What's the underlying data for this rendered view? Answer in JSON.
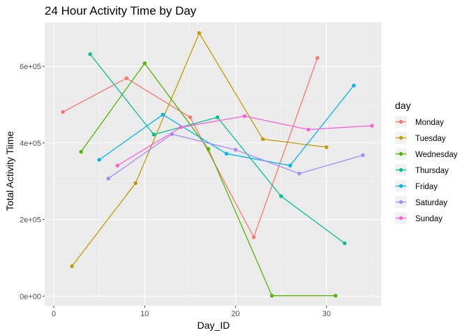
{
  "chart_data": {
    "type": "line",
    "title": "24 Hour Activity Time by Day",
    "xlabel": "Day_ID",
    "ylabel": "Total Activity Tiime",
    "xlim": [
      -1,
      36
    ],
    "ylim": [
      -25000,
      715000
    ],
    "x_ticks": [
      0,
      10,
      20,
      30
    ],
    "x_tick_labels": [
      "0",
      "10",
      "20",
      "30"
    ],
    "y_ticks": [
      0,
      200000,
      400000,
      600000
    ],
    "y_tick_labels": [
      "0e+00",
      "2e+05",
      "4e+05",
      "6e+05"
    ],
    "grid": true,
    "background": "#ebebeb",
    "legend": {
      "title": "day",
      "position": "right"
    },
    "series": [
      {
        "name": "Monday",
        "color": "#F8766D",
        "x": [
          1,
          8,
          15,
          22,
          29
        ],
        "y": [
          481000,
          569000,
          467000,
          154000,
          622000
        ]
      },
      {
        "name": "Tuesday",
        "color": "#C49A00",
        "x": [
          2,
          9,
          16,
          23,
          30
        ],
        "y": [
          78000,
          295000,
          687000,
          410000,
          389000
        ]
      },
      {
        "name": "Wednesday",
        "color": "#53B400",
        "x": [
          3,
          10,
          17,
          24,
          31
        ],
        "y": [
          377000,
          608000,
          384000,
          1000,
          1000
        ]
      },
      {
        "name": "Thursday",
        "color": "#00C094",
        "x": [
          4,
          11,
          18,
          25,
          32
        ],
        "y": [
          632000,
          422000,
          467000,
          261000,
          138000
        ]
      },
      {
        "name": "Friday",
        "color": "#00B6EB",
        "x": [
          5,
          12,
          19,
          26,
          33
        ],
        "y": [
          356000,
          474000,
          372000,
          341000,
          550000
        ]
      },
      {
        "name": "Saturday",
        "color": "#A58AFF",
        "x": [
          6,
          13,
          20,
          27,
          34
        ],
        "y": [
          307000,
          423000,
          382000,
          320000,
          368000
        ]
      },
      {
        "name": "Sunday",
        "color": "#FB61D7",
        "x": [
          7,
          14,
          21,
          28,
          35
        ],
        "y": [
          341000,
          441000,
          470000,
          435000,
          445000
        ]
      }
    ]
  }
}
